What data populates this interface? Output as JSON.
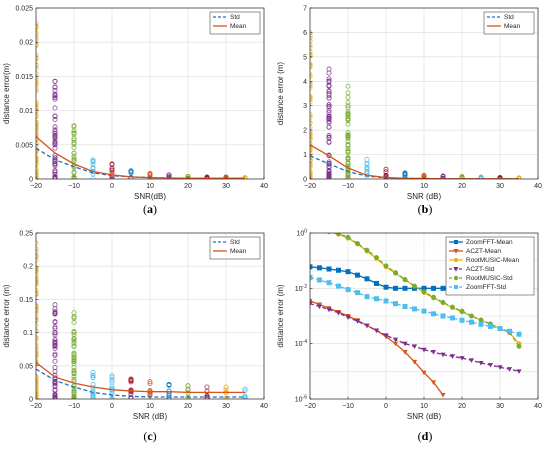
{
  "chart_data": [
    {
      "id": "a",
      "caption": "(a)",
      "type": "scatter",
      "xlabel": "SNR(dB)",
      "ylabel": "distance error(m)",
      "xlim": [
        -20,
        40
      ],
      "ylim": [
        0,
        0.025
      ],
      "xticks": [
        -20,
        -10,
        0,
        10,
        20,
        30,
        40
      ],
      "xtick_labels": [
        "−20",
        "−10",
        "0",
        "10",
        "20",
        "30",
        "40"
      ],
      "yticks": [
        0,
        0.005,
        0.01,
        0.015,
        0.02,
        0.025
      ],
      "ytick_labels": [
        "0",
        "0.005",
        "0.01",
        "0.015",
        "0.02",
        "0.025"
      ],
      "grid": true,
      "legend_position": "top-right",
      "series": [
        {
          "name": "Std",
          "style": "dashed",
          "color": "#1f6fc1",
          "x": [
            -20,
            -15,
            -10,
            -5,
            0,
            5,
            10,
            15,
            20,
            25,
            30,
            35
          ],
          "y": [
            0.0045,
            0.0028,
            0.0018,
            0.0009,
            0.0005,
            0.0003,
            0.0002,
            0.00015,
            0.0001,
            0.0001,
            0.0001,
            0.0001
          ]
        },
        {
          "name": "Mean",
          "style": "solid",
          "color": "#d95319",
          "x": [
            -20,
            -15,
            -10,
            -5,
            0,
            5,
            10,
            15,
            20,
            25,
            30,
            35
          ],
          "y": [
            0.0062,
            0.0038,
            0.0022,
            0.0011,
            0.0006,
            0.0003,
            0.0002,
            0.00015,
            0.0001,
            0.0001,
            0.0001,
            0.0001
          ]
        }
      ],
      "scatter": [
        {
          "x": -20,
          "max": 0.0228,
          "color": "#edb120"
        },
        {
          "x": -15,
          "max": 0.0143,
          "color": "#7e2f8e"
        },
        {
          "x": -10,
          "max": 0.0078,
          "color": "#77ac30"
        },
        {
          "x": -5,
          "max": 0.0028,
          "color": "#4dbeee"
        },
        {
          "x": 0,
          "max": 0.0022,
          "color": "#a2142f"
        },
        {
          "x": 5,
          "max": 0.0012,
          "color": "#0072bd"
        },
        {
          "x": 10,
          "max": 0.0008,
          "color": "#d95319"
        },
        {
          "x": 15,
          "max": 0.0006,
          "color": "#7e2f8e"
        },
        {
          "x": 20,
          "max": 0.0004,
          "color": "#77ac30"
        },
        {
          "x": 25,
          "max": 0.0003,
          "color": "#a2142f"
        },
        {
          "x": 30,
          "max": 0.0003,
          "color": "#d95319"
        },
        {
          "x": 35,
          "max": 0.0002,
          "color": "#edb120"
        }
      ]
    },
    {
      "id": "b",
      "caption": "(b)",
      "type": "scatter",
      "xlabel": "SNR (dB)",
      "ylabel": "distance error (m)",
      "xlim": [
        -20,
        40
      ],
      "ylim": [
        0,
        7
      ],
      "xticks": [
        -20,
        -10,
        0,
        10,
        20,
        30,
        40
      ],
      "xtick_labels": [
        "−20",
        "−10",
        "0",
        "10",
        "20",
        "30",
        "40"
      ],
      "yticks": [
        0,
        1,
        2,
        3,
        4,
        5,
        6,
        7
      ],
      "ytick_labels": [
        "0",
        "1",
        "2",
        "3",
        "4",
        "5",
        "6",
        "7"
      ],
      "grid": true,
      "legend_position": "top-right",
      "series": [
        {
          "name": "Std",
          "style": "dashed",
          "color": "#1f6fc1",
          "x": [
            -20,
            -15,
            -10,
            -5,
            0,
            5,
            10,
            15,
            20,
            25,
            30,
            35
          ],
          "y": [
            0.95,
            0.62,
            0.3,
            0.12,
            0.05,
            0.03,
            0.02,
            0.01,
            0.01,
            0.01,
            0.01,
            0.01
          ]
        },
        {
          "name": "Mean",
          "style": "solid",
          "color": "#d95319",
          "x": [
            -20,
            -15,
            -10,
            -5,
            0,
            5,
            10,
            15,
            20,
            25,
            30,
            35
          ],
          "y": [
            1.4,
            0.95,
            0.45,
            0.15,
            0.06,
            0.03,
            0.02,
            0.01,
            0.01,
            0.01,
            0.01,
            0.01
          ]
        }
      ],
      "scatter": [
        {
          "x": -20,
          "max": 6.0,
          "color": "#edb120"
        },
        {
          "x": -15,
          "max": 4.5,
          "color": "#7e2f8e"
        },
        {
          "x": -10,
          "max": 3.8,
          "color": "#77ac30"
        },
        {
          "x": -5,
          "max": 0.8,
          "color": "#4dbeee"
        },
        {
          "x": 0,
          "max": 0.4,
          "color": "#a2142f"
        },
        {
          "x": 5,
          "max": 0.25,
          "color": "#0072bd"
        },
        {
          "x": 10,
          "max": 0.15,
          "color": "#d95319"
        },
        {
          "x": 15,
          "max": 0.12,
          "color": "#7e2f8e"
        },
        {
          "x": 20,
          "max": 0.1,
          "color": "#77ac30"
        },
        {
          "x": 25,
          "max": 0.08,
          "color": "#4dbeee"
        },
        {
          "x": 30,
          "max": 0.06,
          "color": "#a2142f"
        },
        {
          "x": 35,
          "max": 0.05,
          "color": "#edb120"
        }
      ]
    },
    {
      "id": "c",
      "caption": "(c)",
      "type": "scatter",
      "xlabel": "SNR (dB)",
      "ylabel": "distance error (m)",
      "xlim": [
        -20,
        40
      ],
      "ylim": [
        0,
        0.25
      ],
      "xticks": [
        -20,
        -10,
        0,
        10,
        20,
        30,
        40
      ],
      "xtick_labels": [
        "−20",
        "−10",
        "0",
        "10",
        "20",
        "30",
        "40"
      ],
      "yticks": [
        0,
        0.05,
        0.1,
        0.15,
        0.2,
        0.25
      ],
      "ytick_labels": [
        "0",
        "0.05",
        "0.1",
        "0.15",
        "0.2",
        "0.25"
      ],
      "grid": true,
      "legend_position": "top-right",
      "series": [
        {
          "name": "Std",
          "style": "dashed",
          "color": "#1f6fc1",
          "x": [
            -20,
            -15,
            -10,
            -5,
            0,
            5,
            10,
            15,
            20,
            25,
            30,
            35
          ],
          "y": [
            0.045,
            0.028,
            0.018,
            0.01,
            0.006,
            0.004,
            0.003,
            0.003,
            0.003,
            0.003,
            0.003,
            0.003
          ]
        },
        {
          "name": "Mean",
          "style": "solid",
          "color": "#d95319",
          "x": [
            -20,
            -15,
            -10,
            -5,
            0,
            5,
            10,
            15,
            20,
            25,
            30,
            35
          ],
          "y": [
            0.055,
            0.033,
            0.024,
            0.018,
            0.014,
            0.012,
            0.011,
            0.011,
            0.01,
            0.01,
            0.01,
            0.01
          ]
        }
      ],
      "scatter": [
        {
          "x": -20,
          "max": 0.235,
          "color": "#edb120"
        },
        {
          "x": -15,
          "max": 0.142,
          "color": "#7e2f8e"
        },
        {
          "x": -10,
          "max": 0.13,
          "color": "#77ac30"
        },
        {
          "x": -5,
          "max": 0.04,
          "color": "#4dbeee"
        },
        {
          "x": 0,
          "max": 0.035,
          "color": "#4dbeee"
        },
        {
          "x": 5,
          "max": 0.03,
          "color": "#a2142f"
        },
        {
          "x": 10,
          "max": 0.026,
          "color": "#d95319"
        },
        {
          "x": 15,
          "max": 0.022,
          "color": "#0072bd"
        },
        {
          "x": 20,
          "max": 0.02,
          "color": "#77ac30"
        },
        {
          "x": 25,
          "max": 0.018,
          "color": "#a2142f"
        },
        {
          "x": 30,
          "max": 0.018,
          "color": "#edb120"
        },
        {
          "x": 35,
          "max": 0.015,
          "color": "#4dbeee"
        }
      ]
    },
    {
      "id": "d",
      "caption": "(d)",
      "type": "line",
      "xlabel": "SNR (dB)",
      "ylabel": "distance error (m)",
      "xlim": [
        -20,
        40
      ],
      "ylim": [
        1e-06,
        1
      ],
      "yscale": "log",
      "xticks": [
        -20,
        -10,
        0,
        10,
        20,
        30,
        40
      ],
      "xtick_labels": [
        "−20",
        "−10",
        "0",
        "10",
        "20",
        "30",
        "40"
      ],
      "yticks": [
        1e-06,
        0.0001,
        0.01,
        1
      ],
      "ytick_labels": [
        "10^-6",
        "10^-4",
        "10^-2",
        "10^0"
      ],
      "grid": true,
      "legend_position": "top-right",
      "series": [
        {
          "name": "ZoomFFT-Mean",
          "style": "solid",
          "marker": "square",
          "color": "#0072bd",
          "x": [
            -20,
            -17.5,
            -15,
            -12.5,
            -10,
            -7.5,
            -5,
            -2.5,
            0,
            2.5,
            5,
            7.5,
            10,
            12.5,
            15,
            17.5,
            20,
            22.5,
            25,
            27.5,
            30,
            32.5,
            35
          ],
          "y": [
            0.06,
            0.055,
            0.05,
            0.045,
            0.04,
            0.03,
            0.022,
            0.015,
            0.011,
            0.01,
            0.01,
            0.01,
            0.01,
            0.01,
            0.01,
            0.01,
            0.01,
            0.01,
            0.01,
            0.01,
            0.01,
            0.01,
            0.01
          ]
        },
        {
          "name": "ACZT-Mean",
          "style": "solid",
          "marker": "triangle-down",
          "color": "#d95319",
          "x": [
            -20,
            -17.5,
            -15,
            -12.5,
            -10,
            -7.5,
            -5,
            -2.5,
            0,
            2.5,
            5,
            7.5,
            10,
            12.5,
            15
          ],
          "y": [
            0.0035,
            0.0026,
            0.0019,
            0.0014,
            0.001,
            0.0007,
            0.00045,
            0.0003,
            0.00018,
            0.0001,
            5e-05,
            2.2e-05,
            9e-06,
            4e-06,
            1.4e-06
          ]
        },
        {
          "name": "RootMUSIC-Mean",
          "style": "solid",
          "marker": "circle",
          "color": "#edb120",
          "x": [
            -20,
            -17.5,
            -15,
            -12.5,
            -10,
            -7.5,
            -5,
            -2.5,
            0,
            2.5,
            5,
            7.5,
            10,
            12.5,
            15,
            17.5,
            20,
            22.5,
            25,
            27.5,
            30,
            32.5,
            35
          ],
          "y": [
            1.3,
            1.25,
            1.1,
            0.9,
            0.65,
            0.4,
            0.22,
            0.12,
            0.06,
            0.035,
            0.02,
            0.012,
            0.007,
            0.0045,
            0.003,
            0.002,
            0.0014,
            0.001,
            0.0007,
            0.0005,
            0.00035,
            0.00025,
            0.0001
          ]
        },
        {
          "name": "ACZT-Std",
          "style": "dashed",
          "marker": "triangle-down",
          "color": "#7e2f8e",
          "x": [
            -20,
            -17.5,
            -15,
            -12.5,
            -10,
            -7.5,
            -5,
            -2.5,
            0,
            2.5,
            5,
            7.5,
            10,
            12.5,
            15,
            17.5,
            20,
            22.5,
            25,
            27.5,
            30,
            32.5,
            35
          ],
          "y": [
            0.0028,
            0.0022,
            0.0017,
            0.0013,
            0.0009,
            0.00065,
            0.00045,
            0.0003,
            0.0002,
            0.00014,
            0.0001,
            8e-05,
            6e-05,
            5e-05,
            4e-05,
            3.5e-05,
            3e-05,
            2.5e-05,
            2e-05,
            1.7e-05,
            1.4e-05,
            1.2e-05,
            1e-05
          ]
        },
        {
          "name": "RootMUSIC-Std",
          "style": "dashed",
          "marker": "circle",
          "color": "#77ac30",
          "x": [
            -20,
            -17.5,
            -15,
            -12.5,
            -10,
            -7.5,
            -5,
            -2.5,
            0,
            2.5,
            5,
            7.5,
            10,
            12.5,
            15,
            17.5,
            20,
            22.5,
            25,
            27.5,
            30,
            32.5,
            35
          ],
          "y": [
            1.35,
            1.3,
            1.15,
            0.95,
            0.7,
            0.42,
            0.24,
            0.13,
            0.065,
            0.037,
            0.021,
            0.012,
            0.0075,
            0.0048,
            0.0031,
            0.0021,
            0.0015,
            0.001,
            0.00072,
            0.00052,
            0.00036,
            0.00026,
            8e-05
          ]
        },
        {
          "name": "ZoomFFT-Std",
          "style": "dashed",
          "marker": "square",
          "color": "#4dbeee",
          "x": [
            -20,
            -17.5,
            -15,
            -12.5,
            -10,
            -7.5,
            -5,
            -2.5,
            0,
            2.5,
            5,
            7.5,
            10,
            12.5,
            15,
            17.5,
            20,
            22.5,
            25,
            27.5,
            30,
            32.5,
            35
          ],
          "y": [
            0.025,
            0.02,
            0.016,
            0.012,
            0.009,
            0.007,
            0.005,
            0.0042,
            0.0035,
            0.0028,
            0.0022,
            0.0018,
            0.0015,
            0.0012,
            0.001,
            0.00085,
            0.0007,
            0.0006,
            0.0005,
            0.00042,
            0.00035,
            0.00028,
            0.00022
          ]
        }
      ]
    }
  ]
}
